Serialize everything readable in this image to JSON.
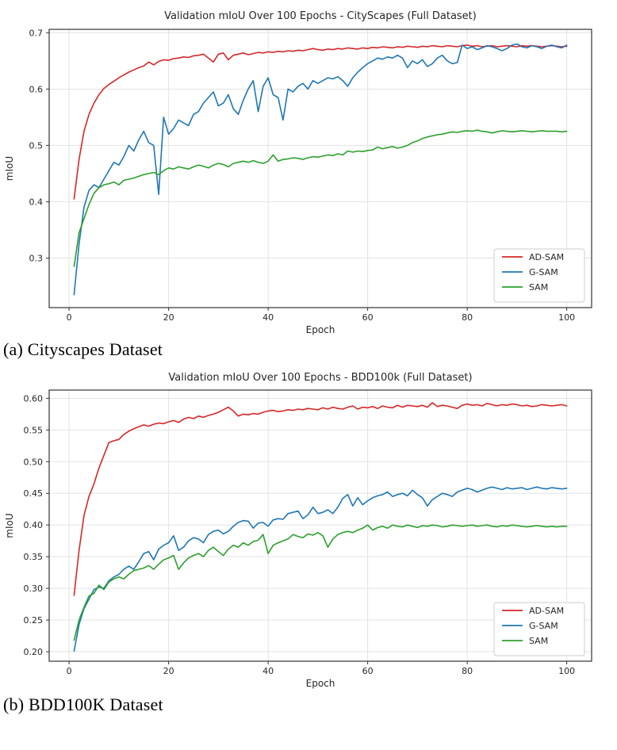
{
  "page": {
    "background": "#ffffff"
  },
  "colors": {
    "ad_sam": "#d62728",
    "g_sam": "#1f77b4",
    "sam": "#2ca02c",
    "grid": "#e3e3e3",
    "spine": "#333333",
    "text": "#262626"
  },
  "figures": [
    {
      "caption": "(a) Cityscapes Dataset"
    },
    {
      "caption": "(b) BDD100K Dataset"
    }
  ],
  "chart_data": [
    {
      "type": "line",
      "title": "Validation mIoU Over 100 Epochs - CityScapes (Full Dataset)",
      "xlabel": "Epoch",
      "ylabel": "mIoU",
      "grid": true,
      "legend_position": "lower right",
      "x": {
        "start": 1,
        "end": 100,
        "step": 1
      },
      "xlim": [
        -4,
        105
      ],
      "ylim": [
        0.212,
        0.706
      ],
      "xticks": [
        0,
        20,
        40,
        60,
        80,
        100
      ],
      "xtick_labels": [
        "0",
        "20",
        "40",
        "60",
        "80",
        "100"
      ],
      "yticks": [
        0.3,
        0.4,
        0.5,
        0.6,
        0.7
      ],
      "ytick_labels": [
        "0.3",
        "0.4",
        "0.5",
        "0.6",
        "0.7"
      ],
      "series": [
        {
          "name": "AD-SAM",
          "color": "#d62728",
          "values": [
            0.405,
            0.475,
            0.525,
            0.555,
            0.575,
            0.59,
            0.601,
            0.608,
            0.614,
            0.62,
            0.625,
            0.63,
            0.634,
            0.638,
            0.641,
            0.648,
            0.643,
            0.649,
            0.652,
            0.651,
            0.654,
            0.655,
            0.657,
            0.656,
            0.659,
            0.66,
            0.662,
            0.655,
            0.648,
            0.662,
            0.664,
            0.652,
            0.66,
            0.662,
            0.664,
            0.661,
            0.663,
            0.665,
            0.664,
            0.666,
            0.665,
            0.667,
            0.666,
            0.668,
            0.667,
            0.669,
            0.668,
            0.67,
            0.672,
            0.67,
            0.669,
            0.671,
            0.67,
            0.672,
            0.671,
            0.673,
            0.672,
            0.671,
            0.673,
            0.672,
            0.674,
            0.673,
            0.675,
            0.674,
            0.673,
            0.675,
            0.674,
            0.676,
            0.675,
            0.674,
            0.676,
            0.675,
            0.677,
            0.676,
            0.675,
            0.677,
            0.676,
            0.675,
            0.677,
            0.678,
            0.676,
            0.677,
            0.675,
            0.676,
            0.677,
            0.675,
            0.676,
            0.677,
            0.676,
            0.675,
            0.677,
            0.676,
            0.677,
            0.676,
            0.675,
            0.676,
            0.677,
            0.676,
            0.675,
            0.676
          ]
        },
        {
          "name": "G-SAM",
          "color": "#1f77b4",
          "values": [
            0.235,
            0.325,
            0.39,
            0.42,
            0.43,
            0.425,
            0.44,
            0.455,
            0.47,
            0.465,
            0.48,
            0.5,
            0.49,
            0.51,
            0.525,
            0.505,
            0.5,
            0.413,
            0.55,
            0.52,
            0.53,
            0.545,
            0.54,
            0.535,
            0.555,
            0.56,
            0.575,
            0.585,
            0.595,
            0.57,
            0.575,
            0.59,
            0.565,
            0.555,
            0.58,
            0.6,
            0.615,
            0.56,
            0.605,
            0.62,
            0.59,
            0.585,
            0.545,
            0.6,
            0.595,
            0.605,
            0.61,
            0.6,
            0.615,
            0.61,
            0.615,
            0.62,
            0.618,
            0.622,
            0.615,
            0.605,
            0.62,
            0.63,
            0.638,
            0.645,
            0.65,
            0.655,
            0.653,
            0.657,
            0.655,
            0.66,
            0.655,
            0.638,
            0.65,
            0.645,
            0.652,
            0.64,
            0.645,
            0.655,
            0.66,
            0.65,
            0.645,
            0.647,
            0.678,
            0.672,
            0.675,
            0.67,
            0.673,
            0.677,
            0.675,
            0.672,
            0.668,
            0.672,
            0.678,
            0.68,
            0.675,
            0.673,
            0.677,
            0.675,
            0.672,
            0.676,
            0.678,
            0.675,
            0.673,
            0.678
          ]
        },
        {
          "name": "SAM",
          "color": "#2ca02c",
          "values": [
            0.285,
            0.345,
            0.37,
            0.395,
            0.415,
            0.425,
            0.43,
            0.432,
            0.435,
            0.43,
            0.438,
            0.44,
            0.442,
            0.445,
            0.448,
            0.45,
            0.452,
            0.448,
            0.455,
            0.46,
            0.458,
            0.462,
            0.46,
            0.458,
            0.462,
            0.465,
            0.463,
            0.46,
            0.465,
            0.468,
            0.466,
            0.462,
            0.468,
            0.47,
            0.472,
            0.47,
            0.473,
            0.47,
            0.468,
            0.472,
            0.483,
            0.472,
            0.475,
            0.476,
            0.478,
            0.477,
            0.475,
            0.478,
            0.48,
            0.479,
            0.481,
            0.483,
            0.482,
            0.485,
            0.483,
            0.49,
            0.488,
            0.49,
            0.489,
            0.491,
            0.492,
            0.497,
            0.494,
            0.496,
            0.498,
            0.495,
            0.497,
            0.5,
            0.505,
            0.508,
            0.512,
            0.515,
            0.517,
            0.519,
            0.52,
            0.522,
            0.524,
            0.523,
            0.525,
            0.526,
            0.525,
            0.527,
            0.525,
            0.524,
            0.522,
            0.524,
            0.526,
            0.525,
            0.524,
            0.525,
            0.526,
            0.525,
            0.524,
            0.525,
            0.526,
            0.525,
            0.525,
            0.525,
            0.524,
            0.525
          ]
        }
      ]
    },
    {
      "type": "line",
      "title": "Validation mIoU Over 100 Epochs - BDD100k (Full Dataset)",
      "xlabel": "Epoch",
      "ylabel": "mIoU",
      "grid": true,
      "legend_position": "lower right",
      "x": {
        "start": 1,
        "end": 100,
        "step": 1
      },
      "xlim": [
        -4,
        105
      ],
      "ylim": [
        0.185,
        0.613
      ],
      "xticks": [
        0,
        20,
        40,
        60,
        80,
        100
      ],
      "xtick_labels": [
        "0",
        "20",
        "40",
        "60",
        "80",
        "100"
      ],
      "yticks": [
        0.2,
        0.25,
        0.3,
        0.35,
        0.4,
        0.45,
        0.5,
        0.55,
        0.6
      ],
      "ytick_labels": [
        "0.20",
        "0.25",
        "0.30",
        "0.35",
        "0.40",
        "0.45",
        "0.50",
        "0.55",
        "0.60"
      ],
      "series": [
        {
          "name": "AD-SAM",
          "color": "#d62728",
          "values": [
            0.289,
            0.36,
            0.415,
            0.445,
            0.465,
            0.49,
            0.51,
            0.53,
            0.533,
            0.535,
            0.543,
            0.548,
            0.552,
            0.555,
            0.558,
            0.556,
            0.559,
            0.561,
            0.56,
            0.563,
            0.565,
            0.562,
            0.567,
            0.57,
            0.568,
            0.572,
            0.57,
            0.573,
            0.575,
            0.578,
            0.582,
            0.586,
            0.58,
            0.572,
            0.575,
            0.574,
            0.576,
            0.575,
            0.578,
            0.58,
            0.581,
            0.579,
            0.58,
            0.582,
            0.581,
            0.583,
            0.582,
            0.584,
            0.583,
            0.582,
            0.585,
            0.583,
            0.586,
            0.584,
            0.583,
            0.586,
            0.588,
            0.583,
            0.586,
            0.585,
            0.587,
            0.584,
            0.588,
            0.586,
            0.585,
            0.589,
            0.586,
            0.589,
            0.588,
            0.587,
            0.589,
            0.586,
            0.593,
            0.587,
            0.589,
            0.588,
            0.586,
            0.584,
            0.589,
            0.591,
            0.589,
            0.59,
            0.588,
            0.592,
            0.59,
            0.588,
            0.59,
            0.589,
            0.591,
            0.59,
            0.588,
            0.589,
            0.587,
            0.588,
            0.59,
            0.589,
            0.588,
            0.589,
            0.59,
            0.588
          ]
        },
        {
          "name": "G-SAM",
          "color": "#1f77b4",
          "values": [
            0.201,
            0.243,
            0.268,
            0.283,
            0.298,
            0.302,
            0.3,
            0.312,
            0.318,
            0.322,
            0.33,
            0.335,
            0.33,
            0.342,
            0.355,
            0.358,
            0.345,
            0.362,
            0.368,
            0.372,
            0.383,
            0.36,
            0.365,
            0.375,
            0.38,
            0.378,
            0.372,
            0.385,
            0.39,
            0.392,
            0.386,
            0.39,
            0.398,
            0.404,
            0.407,
            0.406,
            0.395,
            0.403,
            0.404,
            0.398,
            0.408,
            0.41,
            0.409,
            0.418,
            0.42,
            0.422,
            0.41,
            0.416,
            0.428,
            0.418,
            0.42,
            0.424,
            0.418,
            0.428,
            0.442,
            0.448,
            0.43,
            0.443,
            0.432,
            0.438,
            0.443,
            0.446,
            0.448,
            0.452,
            0.445,
            0.448,
            0.45,
            0.446,
            0.455,
            0.448,
            0.443,
            0.43,
            0.44,
            0.445,
            0.45,
            0.448,
            0.445,
            0.452,
            0.455,
            0.458,
            0.456,
            0.452,
            0.455,
            0.458,
            0.46,
            0.458,
            0.456,
            0.459,
            0.457,
            0.458,
            0.459,
            0.456,
            0.458,
            0.46,
            0.458,
            0.457,
            0.459,
            0.458,
            0.457,
            0.458
          ]
        },
        {
          "name": "SAM",
          "color": "#2ca02c",
          "values": [
            0.218,
            0.25,
            0.27,
            0.288,
            0.292,
            0.305,
            0.298,
            0.31,
            0.315,
            0.318,
            0.315,
            0.322,
            0.328,
            0.33,
            0.332,
            0.336,
            0.33,
            0.338,
            0.345,
            0.348,
            0.352,
            0.33,
            0.34,
            0.348,
            0.352,
            0.355,
            0.35,
            0.36,
            0.365,
            0.358,
            0.352,
            0.362,
            0.368,
            0.365,
            0.372,
            0.368,
            0.374,
            0.376,
            0.385,
            0.355,
            0.368,
            0.372,
            0.375,
            0.378,
            0.385,
            0.382,
            0.38,
            0.386,
            0.384,
            0.388,
            0.383,
            0.365,
            0.378,
            0.385,
            0.388,
            0.39,
            0.388,
            0.392,
            0.395,
            0.4,
            0.392,
            0.396,
            0.398,
            0.395,
            0.4,
            0.398,
            0.397,
            0.4,
            0.398,
            0.396,
            0.399,
            0.398,
            0.4,
            0.399,
            0.397,
            0.398,
            0.4,
            0.399,
            0.398,
            0.399,
            0.4,
            0.398,
            0.399,
            0.4,
            0.398,
            0.397,
            0.399,
            0.398,
            0.4,
            0.399,
            0.398,
            0.397,
            0.398,
            0.399,
            0.398,
            0.397,
            0.398,
            0.397,
            0.398,
            0.398
          ]
        }
      ]
    }
  ]
}
